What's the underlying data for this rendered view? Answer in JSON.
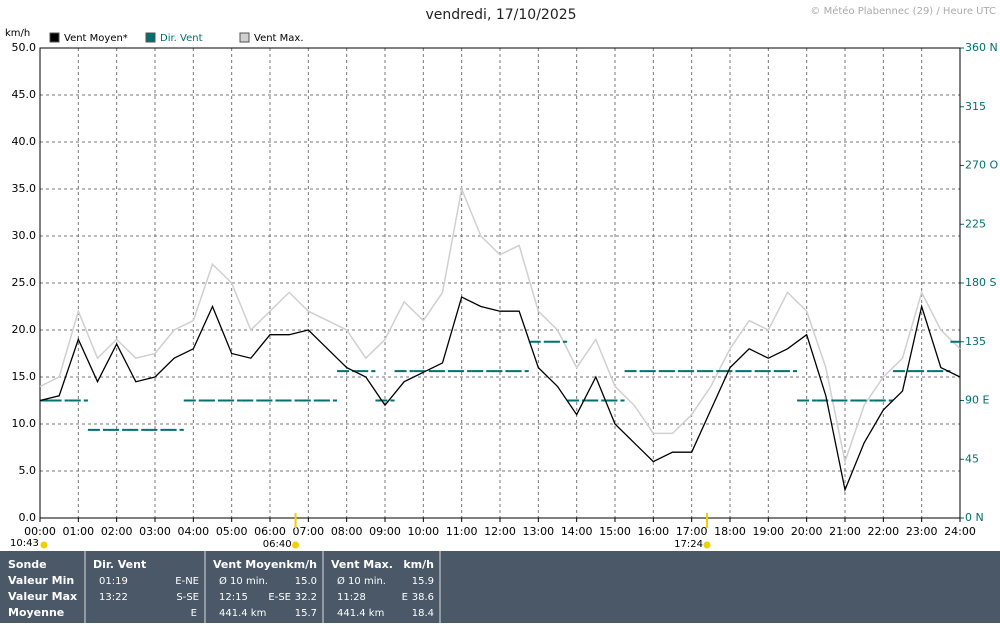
{
  "chart_data": {
    "type": "line",
    "title": "vendredi, 17/10/2025",
    "credit": "© Météo Plabennec (29) / Heure UTC",
    "ylabel": "km/h",
    "x": [
      0,
      0.5,
      1,
      1.5,
      2,
      2.5,
      3,
      3.5,
      4,
      4.5,
      5,
      5.5,
      6,
      6.5,
      7,
      7.5,
      8,
      8.5,
      9,
      9.5,
      10,
      10.5,
      11,
      11.5,
      12,
      12.5,
      13,
      13.5,
      14,
      14.5,
      15,
      15.5,
      16,
      16.5,
      17,
      17.5,
      18,
      18.5,
      19,
      19.5,
      20,
      20.5,
      21,
      21.5,
      22,
      22.5,
      23,
      23.5,
      24
    ],
    "series": [
      {
        "name": "Vent Moyen*",
        "color": "#000000",
        "values": [
          12.5,
          13,
          19,
          14.5,
          18.5,
          14.5,
          15,
          17,
          18,
          22.5,
          17.5,
          17,
          19.5,
          19.5,
          20,
          18,
          16,
          15,
          12,
          14.5,
          15.5,
          16.5,
          23.5,
          22.5,
          22,
          22,
          16,
          14,
          11,
          15,
          10,
          8,
          6,
          7,
          7,
          11.5,
          16,
          18,
          17,
          18,
          19.5,
          13,
          3,
          8,
          11.5,
          13.5,
          22.5,
          16,
          15
        ]
      },
      {
        "name": "Dir. Vent",
        "color": "#007070",
        "axis": "y2",
        "values": [
          90,
          90,
          90,
          67.5,
          67.5,
          67.5,
          67.5,
          67.5,
          90,
          90,
          90,
          90,
          90,
          90,
          90,
          90,
          112.5,
          112.5,
          90,
          112.5,
          112.5,
          112.5,
          112.5,
          112.5,
          112.5,
          112.5,
          135,
          135,
          90,
          90,
          90,
          112.5,
          112.5,
          112.5,
          112.5,
          112.5,
          112.5,
          112.5,
          112.5,
          112.5,
          90,
          90,
          90,
          90,
          90,
          112.5,
          112.5,
          112.5,
          135
        ]
      },
      {
        "name": "Vent Max.",
        "color": "#d0d0d0",
        "values": [
          14,
          15,
          22,
          17,
          19,
          17,
          17.5,
          20,
          21,
          27,
          25,
          20,
          22,
          24,
          22,
          21,
          20,
          17,
          19,
          23,
          21,
          24,
          35,
          30,
          28,
          29,
          22,
          20,
          16,
          19,
          14,
          12,
          9,
          9,
          11,
          14,
          18,
          21,
          20,
          24,
          22,
          16,
          6,
          12,
          15,
          17,
          24,
          20,
          18
        ]
      }
    ],
    "xlim": [
      0,
      24
    ],
    "xticks": [
      {
        "value": 0,
        "label": "00:00"
      },
      {
        "value": 1,
        "label": "01:00"
      },
      {
        "value": 2,
        "label": "02:00"
      },
      {
        "value": 3,
        "label": "03:00"
      },
      {
        "value": 4,
        "label": "04:00"
      },
      {
        "value": 5,
        "label": "05:00"
      },
      {
        "value": 6,
        "label": "06:00"
      },
      {
        "value": 7,
        "label": "07:00"
      },
      {
        "value": 8,
        "label": "08:00"
      },
      {
        "value": 9,
        "label": "09:00"
      },
      {
        "value": 10,
        "label": "10:00"
      },
      {
        "value": 11,
        "label": "11:00"
      },
      {
        "value": 12,
        "label": "12:00"
      },
      {
        "value": 13,
        "label": "13:00"
      },
      {
        "value": 14,
        "label": "14:00"
      },
      {
        "value": 15,
        "label": "15:00"
      },
      {
        "value": 16,
        "label": "16:00"
      },
      {
        "value": 17,
        "label": "17:00"
      },
      {
        "value": 18,
        "label": "18:00"
      },
      {
        "value": 19,
        "label": "19:00"
      },
      {
        "value": 20,
        "label": "20:00"
      },
      {
        "value": 21,
        "label": "21:00"
      },
      {
        "value": 22,
        "label": "22:00"
      },
      {
        "value": 23,
        "label": "23:00"
      },
      {
        "value": 24,
        "label": "24:00"
      }
    ],
    "ylim": [
      0,
      50
    ],
    "yticks": [
      {
        "value": 0,
        "label": "0.0"
      },
      {
        "value": 5,
        "label": "5.0"
      },
      {
        "value": 10,
        "label": "10.0"
      },
      {
        "value": 15,
        "label": "15.0"
      },
      {
        "value": 20,
        "label": "20.0"
      },
      {
        "value": 25,
        "label": "25.0"
      },
      {
        "value": 30,
        "label": "30.0"
      },
      {
        "value": 35,
        "label": "35.0"
      },
      {
        "value": 40,
        "label": "40.0"
      },
      {
        "value": 45,
        "label": "45.0"
      },
      {
        "value": 50,
        "label": "50.0"
      }
    ],
    "y2lim": [
      0,
      360
    ],
    "y2ticks": [
      {
        "value": 0,
        "label": "0 N"
      },
      45,
      {
        "value": 90,
        "label": "90 E"
      },
      135,
      {
        "value": 180,
        "label": "180 S"
      },
      225,
      {
        "value": 270,
        "label": "270 O"
      },
      315,
      {
        "value": 360,
        "label": "360 N"
      }
    ],
    "grid": true,
    "sun": [
      {
        "label": "06:40",
        "x": 6.667
      },
      {
        "label": "17:24",
        "x": 17.4
      }
    ],
    "day_length": "10:43"
  },
  "table": {
    "columns": [
      {
        "title": "Sonde",
        "rows": [
          [
            "Valeur Min"
          ],
          [
            "Valeur Max"
          ],
          [
            "Moyenne"
          ]
        ]
      },
      {
        "title": "Dir. Vent",
        "rows": [
          [
            "01:19",
            "E-NE"
          ],
          [
            "13:22",
            "S-SE"
          ],
          [
            "E"
          ]
        ]
      },
      {
        "title": "Vent Moyen",
        "unit": "km/h",
        "rows": [
          [
            "Ø 10 min.",
            "15.0"
          ],
          [
            "12:15",
            "E-SE",
            "32.2"
          ],
          [
            "441.4 km",
            "15.7"
          ]
        ]
      },
      {
        "title": "Vent Max.",
        "unit": "km/h",
        "rows": [
          [
            "Ø 10 min.",
            "15.9"
          ],
          [
            "11:28",
            "E",
            "38.6"
          ],
          [
            "441.4 km",
            "18.4"
          ]
        ]
      }
    ]
  }
}
